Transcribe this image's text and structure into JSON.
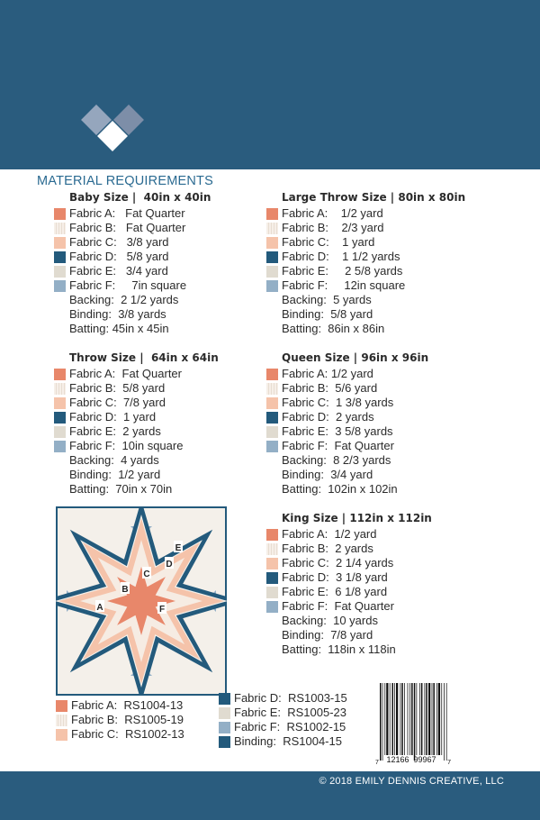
{
  "colors": {
    "brand": "#2a5c7e",
    "fabric_a": "#e8876a",
    "fabric_b": "#f3ece4",
    "fabric_c": "#f5c3aa",
    "fabric_d": "#235a7c",
    "fabric_e": "#e0dbd0",
    "fabric_f": "#93afc6"
  },
  "logo": {
    "icon": "three-diamond-heart-logo"
  },
  "section_title": "MATERIAL REQUIREMENTS",
  "sizes": [
    {
      "title": "Baby Size |  40in x 40in",
      "rows": [
        {
          "swatch": "A",
          "text": "Fabric A:   Fat Quarter"
        },
        {
          "swatch": "B",
          "text": "Fabric B:   Fat Quarter"
        },
        {
          "swatch": "C",
          "text": "Fabric C:   3/8 yard"
        },
        {
          "swatch": "D",
          "text": "Fabric D:   5/8 yard"
        },
        {
          "swatch": "E",
          "text": "Fabric E:   3/4 yard"
        },
        {
          "swatch": "F",
          "text": "Fabric F:     7in square"
        },
        {
          "swatch": "",
          "text": "Backing:  2 1/2 yards"
        },
        {
          "swatch": "",
          "text": "Binding:  3/8 yards"
        },
        {
          "swatch": "",
          "text": "Batting: 45in x 45in"
        }
      ]
    },
    {
      "title": "Throw Size |  64in x 64in",
      "rows": [
        {
          "swatch": "A",
          "text": "Fabric A:  Fat Quarter"
        },
        {
          "swatch": "B",
          "text": "Fabric B:  5/8 yard"
        },
        {
          "swatch": "C",
          "text": "Fabric C:  7/8 yard"
        },
        {
          "swatch": "D",
          "text": "Fabric D:  1 yard"
        },
        {
          "swatch": "E",
          "text": "Fabric E:  2 yards"
        },
        {
          "swatch": "F",
          "text": "Fabric F:  10in square"
        },
        {
          "swatch": "",
          "text": "Backing:  4 yards"
        },
        {
          "swatch": "",
          "text": "Binding:  1/2 yard"
        },
        {
          "swatch": "",
          "text": "Batting:  70in x 70in"
        }
      ]
    },
    {
      "title": "Large Throw Size | 80in x 80in",
      "rows": [
        {
          "swatch": "A",
          "text": "Fabric A:    1/2 yard"
        },
        {
          "swatch": "B",
          "text": "Fabric B:    2/3 yard"
        },
        {
          "swatch": "C",
          "text": "Fabric C:    1 yard"
        },
        {
          "swatch": "D",
          "text": "Fabric D:    1 1/2 yards"
        },
        {
          "swatch": "E",
          "text": "Fabric E:     2 5/8 yards"
        },
        {
          "swatch": "F",
          "text": "Fabric F:     12in square"
        },
        {
          "swatch": "",
          "text": "Backing:  5 yards"
        },
        {
          "swatch": "",
          "text": "Binding:  5/8 yard"
        },
        {
          "swatch": "",
          "text": "Batting:  86in x 86in"
        }
      ]
    },
    {
      "title": "Queen Size | 96in x 96in",
      "rows": [
        {
          "swatch": "A",
          "text": "Fabric A: 1/2 yard"
        },
        {
          "swatch": "B",
          "text": "Fabric B:  5/6 yard"
        },
        {
          "swatch": "C",
          "text": "Fabric C:  1 3/8 yards"
        },
        {
          "swatch": "D",
          "text": "Fabric D:  2 yards"
        },
        {
          "swatch": "E",
          "text": "Fabric E:  3 5/8 yards"
        },
        {
          "swatch": "F",
          "text": "Fabric F:  Fat Quarter"
        },
        {
          "swatch": "",
          "text": "Backing:  8 2/3 yards"
        },
        {
          "swatch": "",
          "text": "Binding:  3/4 yard"
        },
        {
          "swatch": "",
          "text": "Batting:  102in x 102in"
        }
      ]
    },
    {
      "title": "King Size | 112in x 112in",
      "rows": [
        {
          "swatch": "A",
          "text": "Fabric A:  1/2 yard"
        },
        {
          "swatch": "B",
          "text": "Fabric B:  2 yards"
        },
        {
          "swatch": "C",
          "text": "Fabric C:  2 1/4 yards"
        },
        {
          "swatch": "D",
          "text": "Fabric D:  3 1/8 yard"
        },
        {
          "swatch": "E",
          "text": "Fabric E:  6 1/8 yard"
        },
        {
          "swatch": "F",
          "text": "Fabric F:  Fat Quarter"
        },
        {
          "swatch": "",
          "text": "Backing:  10 yards"
        },
        {
          "swatch": "",
          "text": "Binding:  7/8 yard"
        },
        {
          "swatch": "",
          "text": "Batting:  118in x 118in"
        }
      ]
    }
  ],
  "quilt_labels": [
    "A",
    "B",
    "C",
    "D",
    "E",
    "F"
  ],
  "fabric_legend": {
    "left": [
      {
        "swatch": "A",
        "text": "Fabric A:  RS1004-13"
      },
      {
        "swatch": "B",
        "text": "Fabric B:  RS1005-19"
      },
      {
        "swatch": "C",
        "text": "Fabric C:  RS1002-13"
      }
    ],
    "right": [
      {
        "swatch": "D",
        "text": "Fabric D:  RS1003-15"
      },
      {
        "swatch": "E",
        "text": "Fabric E:  RS1005-23"
      },
      {
        "swatch": "F",
        "text": "Fabric F:  RS1002-15"
      },
      {
        "swatch": "D",
        "text": "Binding:  RS1004-15"
      }
    ]
  },
  "barcode": {
    "digits": [
      "7",
      "12166",
      "99967",
      "7"
    ]
  },
  "copyright": "© 2018 EMILY DENNIS CREATIVE, LLC"
}
